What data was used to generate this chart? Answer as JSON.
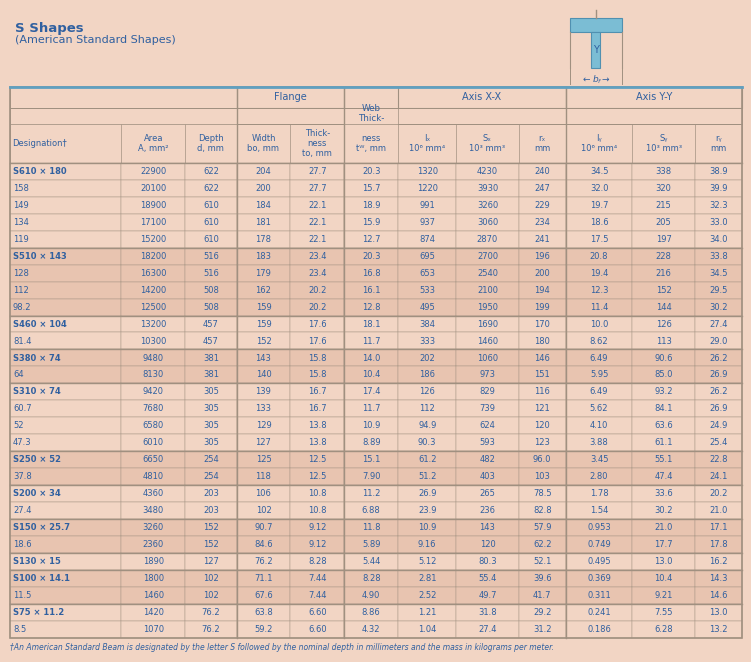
{
  "title": "S Shapes",
  "subtitle": "(American Standard Shapes)",
  "bg_color": "#f2d5c4",
  "text_color": "#3060a0",
  "border_color": "#a09080",
  "rows": [
    [
      "S610 × 180",
      "22900",
      "622",
      "204",
      "27.7",
      "20.3",
      "1320",
      "4230",
      "240",
      "34.5",
      "338",
      "38.9"
    ],
    [
      "158",
      "20100",
      "622",
      "200",
      "27.7",
      "15.7",
      "1220",
      "3930",
      "247",
      "32.0",
      "320",
      "39.9"
    ],
    [
      "149",
      "18900",
      "610",
      "184",
      "22.1",
      "18.9",
      "991",
      "3260",
      "229",
      "19.7",
      "215",
      "32.3"
    ],
    [
      "134",
      "17100",
      "610",
      "181",
      "22.1",
      "15.9",
      "937",
      "3060",
      "234",
      "18.6",
      "205",
      "33.0"
    ],
    [
      "119",
      "15200",
      "610",
      "178",
      "22.1",
      "12.7",
      "874",
      "2870",
      "241",
      "17.5",
      "197",
      "34.0"
    ],
    [
      "S510 × 143",
      "18200",
      "516",
      "183",
      "23.4",
      "20.3",
      "695",
      "2700",
      "196",
      "20.8",
      "228",
      "33.8"
    ],
    [
      "128",
      "16300",
      "516",
      "179",
      "23.4",
      "16.8",
      "653",
      "2540",
      "200",
      "19.4",
      "216",
      "34.5"
    ],
    [
      "112",
      "14200",
      "508",
      "162",
      "20.2",
      "16.1",
      "533",
      "2100",
      "194",
      "12.3",
      "152",
      "29.5"
    ],
    [
      "98.2",
      "12500",
      "508",
      "159",
      "20.2",
      "12.8",
      "495",
      "1950",
      "199",
      "11.4",
      "144",
      "30.2"
    ],
    [
      "S460 × 104",
      "13200",
      "457",
      "159",
      "17.6",
      "18.1",
      "384",
      "1690",
      "170",
      "10.0",
      "126",
      "27.4"
    ],
    [
      "81.4",
      "10300",
      "457",
      "152",
      "17.6",
      "11.7",
      "333",
      "1460",
      "180",
      "8.62",
      "113",
      "29.0"
    ],
    [
      "S380 × 74",
      "9480",
      "381",
      "143",
      "15.8",
      "14.0",
      "202",
      "1060",
      "146",
      "6.49",
      "90.6",
      "26.2"
    ],
    [
      "64",
      "8130",
      "381",
      "140",
      "15.8",
      "10.4",
      "186",
      "973",
      "151",
      "5.95",
      "85.0",
      "26.9"
    ],
    [
      "S310 × 74",
      "9420",
      "305",
      "139",
      "16.7",
      "17.4",
      "126",
      "829",
      "116",
      "6.49",
      "93.2",
      "26.2"
    ],
    [
      "60.7",
      "7680",
      "305",
      "133",
      "16.7",
      "11.7",
      "112",
      "739",
      "121",
      "5.62",
      "84.1",
      "26.9"
    ],
    [
      "52",
      "6580",
      "305",
      "129",
      "13.8",
      "10.9",
      "94.9",
      "624",
      "120",
      "4.10",
      "63.6",
      "24.9"
    ],
    [
      "47.3",
      "6010",
      "305",
      "127",
      "13.8",
      "8.89",
      "90.3",
      "593",
      "123",
      "3.88",
      "61.1",
      "25.4"
    ],
    [
      "S250 × 52",
      "6650",
      "254",
      "125",
      "12.5",
      "15.1",
      "61.2",
      "482",
      "96.0",
      "3.45",
      "55.1",
      "22.8"
    ],
    [
      "37.8",
      "4810",
      "254",
      "118",
      "12.5",
      "7.90",
      "51.2",
      "403",
      "103",
      "2.80",
      "47.4",
      "24.1"
    ],
    [
      "S200 × 34",
      "4360",
      "203",
      "106",
      "10.8",
      "11.2",
      "26.9",
      "265",
      "78.5",
      "1.78",
      "33.6",
      "20.2"
    ],
    [
      "27.4",
      "3480",
      "203",
      "102",
      "10.8",
      "6.88",
      "23.9",
      "236",
      "82.8",
      "1.54",
      "30.2",
      "21.0"
    ],
    [
      "S150 × 25.7",
      "3260",
      "152",
      "90.7",
      "9.12",
      "11.8",
      "10.9",
      "143",
      "57.9",
      "0.953",
      "21.0",
      "17.1"
    ],
    [
      "18.6",
      "2360",
      "152",
      "84.6",
      "9.12",
      "5.89",
      "9.16",
      "120",
      "62.2",
      "0.749",
      "17.7",
      "17.8"
    ],
    [
      "S130 × 15",
      "1890",
      "127",
      "76.2",
      "8.28",
      "5.44",
      "5.12",
      "80.3",
      "52.1",
      "0.495",
      "13.0",
      "16.2"
    ],
    [
      "S100 × 14.1",
      "1800",
      "102",
      "71.1",
      "7.44",
      "8.28",
      "2.81",
      "55.4",
      "39.6",
      "0.369",
      "10.4",
      "14.3"
    ],
    [
      "11.5",
      "1460",
      "102",
      "67.6",
      "7.44",
      "4.90",
      "2.52",
      "49.7",
      "41.7",
      "0.311",
      "9.21",
      "14.6"
    ],
    [
      "S75 × 11.2",
      "1420",
      "76.2",
      "63.8",
      "6.60",
      "8.86",
      "1.21",
      "31.8",
      "29.2",
      "0.241",
      "7.55",
      "13.0"
    ],
    [
      "8.5",
      "1070",
      "76.2",
      "59.2",
      "6.60",
      "4.32",
      "1.04",
      "27.4",
      "31.2",
      "0.186",
      "6.28",
      "13.2"
    ]
  ],
  "group_starts": [
    0,
    5,
    9,
    11,
    13,
    17,
    19,
    21,
    23,
    24,
    26
  ],
  "footnote": "†An American Standard Beam is designated by the letter S followed by the nominal depth in millimeters and the mass in kilograms per meter."
}
